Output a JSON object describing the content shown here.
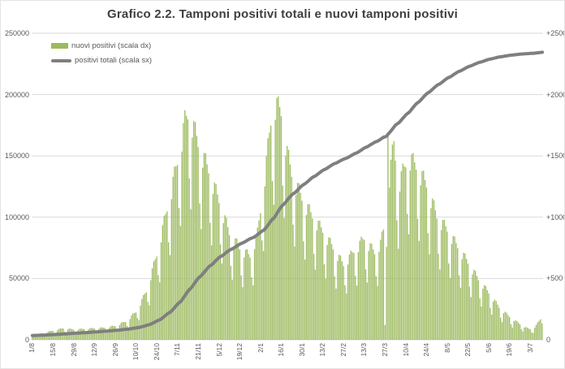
{
  "title": "Grafico 2.2. Tamponi positivi totali e nuovi tamponi positivi",
  "legend": {
    "bar_label": "nuovi positivi (scala dx)",
    "line_label": "positivi totali (scala sx)"
  },
  "axes": {
    "left_ticks": [
      "250000",
      "200000",
      "150000",
      "100000",
      "50000",
      "0"
    ],
    "right_ticks": [
      "+2500",
      "+2000",
      "+1500",
      "+1000",
      "+500",
      "0"
    ],
    "x_ticks": [
      "1/8",
      "15/8",
      "29/8",
      "12/9",
      "26/9",
      "10/10",
      "24/10",
      "7/11",
      "21/11",
      "5/12",
      "19/12",
      "2/1",
      "16/1",
      "30/1",
      "13/2",
      "27/2",
      "13/3",
      "27/3",
      "10/4",
      "24/4",
      "8/5",
      "22/5",
      "5/6",
      "19/6",
      "3/7"
    ]
  },
  "colors": {
    "bar": "#9cba5e",
    "line": "#7f7f7f",
    "grid": "#d9d9d9",
    "axis_text": "#595959",
    "title_text": "#3f3f3f",
    "background": "#ffffff"
  },
  "chart_data": {
    "type": "bar",
    "subtype": "daily bars + cumulative line (combo chart)",
    "title": "Grafico 2.2. Tamponi positivi totali e nuovi tamponi positivi",
    "grid": "horizontal only",
    "legend_position": "top-left inside plot",
    "x_tick_labels": [
      "1/8",
      "15/8",
      "29/8",
      "12/9",
      "26/9",
      "10/10",
      "24/10",
      "7/11",
      "21/11",
      "5/12",
      "19/12",
      "2/1",
      "16/1",
      "30/1",
      "13/2",
      "27/2",
      "13/3",
      "27/3",
      "10/4",
      "24/4",
      "8/5",
      "22/5",
      "5/6",
      "19/6",
      "3/7"
    ],
    "x_tick_days": [
      0,
      14,
      28,
      42,
      56,
      70,
      84,
      98,
      112,
      126,
      140,
      154,
      168,
      182,
      196,
      210,
      224,
      238,
      252,
      266,
      280,
      294,
      308,
      322,
      336
    ],
    "n_days": 345,
    "series": [
      {
        "name": "nuovi positivi",
        "axis": "right",
        "axis_range": [
          0,
          2500
        ],
        "style": "bar",
        "envelope_anchors": [
          [
            0,
            35
          ],
          [
            7,
            55
          ],
          [
            14,
            75
          ],
          [
            21,
            95
          ],
          [
            28,
            85
          ],
          [
            35,
            90
          ],
          [
            42,
            95
          ],
          [
            49,
            100
          ],
          [
            56,
            115
          ],
          [
            63,
            150
          ],
          [
            70,
            230
          ],
          [
            77,
            400
          ],
          [
            84,
            700
          ],
          [
            91,
            1080
          ],
          [
            98,
            1470
          ],
          [
            103,
            1800
          ],
          [
            106,
            1880
          ],
          [
            112,
            1620
          ],
          [
            119,
            1400
          ],
          [
            126,
            1150
          ],
          [
            133,
            880
          ],
          [
            140,
            760
          ],
          [
            147,
            690
          ],
          [
            152,
            880
          ],
          [
            156,
            1250
          ],
          [
            161,
            1800
          ],
          [
            164,
            1950
          ],
          [
            168,
            1880
          ],
          [
            172,
            1550
          ],
          [
            175,
            1370
          ],
          [
            182,
            1170
          ],
          [
            189,
            1020
          ],
          [
            196,
            900
          ],
          [
            203,
            760
          ],
          [
            210,
            620
          ],
          [
            217,
            730
          ],
          [
            224,
            840
          ],
          [
            231,
            720
          ],
          [
            235,
            800
          ],
          [
            238,
            950
          ],
          [
            241,
            1350
          ],
          [
            244,
            1620
          ],
          [
            247,
            1280
          ],
          [
            252,
            1450
          ],
          [
            255,
            1500
          ],
          [
            259,
            1430
          ],
          [
            263,
            1350
          ],
          [
            266,
            1280
          ],
          [
            270,
            1130
          ],
          [
            273,
            1020
          ],
          [
            280,
            910
          ],
          [
            287,
            770
          ],
          [
            294,
            640
          ],
          [
            301,
            500
          ],
          [
            308,
            390
          ],
          [
            315,
            270
          ],
          [
            322,
            190
          ],
          [
            329,
            130
          ],
          [
            334,
            95
          ],
          [
            337,
            85
          ],
          [
            340,
            120
          ],
          [
            344,
            190
          ]
        ],
        "weekly_pattern": [
          0.97,
          0.7,
          0.58,
          0.92,
          1.02,
          1.04,
          1.0
        ],
        "overrides": {
          "238": 120,
          "240": 1660
        },
        "value_clamp": [
          8,
          1985
        ]
      },
      {
        "name": "positivi totali",
        "axis": "left",
        "axis_range": [
          0,
          250000
        ],
        "style": "line",
        "derivation": "cumulative sum of daily new positives",
        "start_value": 3500,
        "end_value": 234500
      }
    ]
  }
}
